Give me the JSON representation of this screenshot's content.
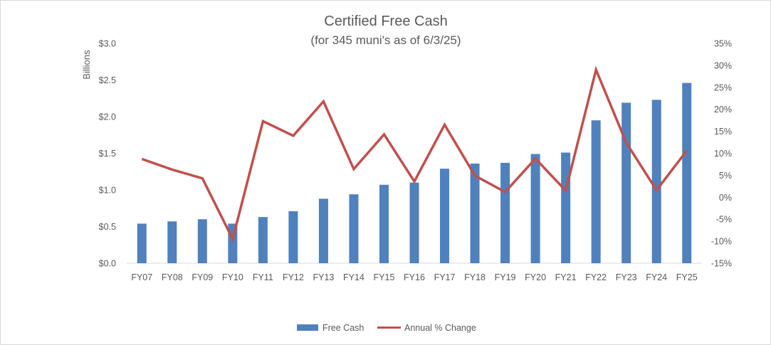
{
  "chart_data": {
    "type": "bar",
    "title": "Certified Free Cash",
    "subtitle": "(for 345 muni's as of 6/3/25)",
    "ylabel": "Billions",
    "categories": [
      "FY07",
      "FY08",
      "FY09",
      "FY10",
      "FY11",
      "FY12",
      "FY13",
      "FY14",
      "FY15",
      "FY16",
      "FY17",
      "FY18",
      "FY19",
      "FY20",
      "FY21",
      "FY22",
      "FY23",
      "FY24",
      "FY25"
    ],
    "series": [
      {
        "name": "Free Cash",
        "type": "bar",
        "axis": "left",
        "color": "#4f81bd",
        "values": [
          0.54,
          0.57,
          0.6,
          0.54,
          0.63,
          0.71,
          0.88,
          0.94,
          1.07,
          1.1,
          1.29,
          1.36,
          1.37,
          1.49,
          1.51,
          1.95,
          2.19,
          2.23,
          2.46
        ]
      },
      {
        "name": "Annual % Change",
        "type": "line",
        "axis": "right",
        "color": "#c0504d",
        "values": [
          8.7,
          6.3,
          4.3,
          -9.5,
          17.3,
          14.0,
          21.8,
          6.4,
          14.3,
          3.6,
          16.5,
          4.9,
          1.2,
          8.8,
          1.5,
          29.0,
          12.4,
          1.6,
          10.6
        ]
      }
    ],
    "y_left": {
      "min": 0,
      "max": 3.0,
      "ticks": [
        0,
        0.5,
        1.0,
        1.5,
        2.0,
        2.5,
        3.0
      ],
      "tick_labels": [
        "$0.0",
        "$0.5",
        "$1.0",
        "$1.5",
        "$2.0",
        "$2.5",
        "$3.0"
      ]
    },
    "y_right": {
      "min": -15,
      "max": 35,
      "ticks": [
        -15,
        -10,
        -5,
        0,
        5,
        10,
        15,
        20,
        25,
        30,
        35
      ],
      "tick_labels": [
        "-15%",
        "-10%",
        "-5%",
        "0%",
        "5%",
        "10%",
        "15%",
        "20%",
        "25%",
        "30%",
        "35%"
      ]
    },
    "grid": false,
    "legend": {
      "position": "bottom",
      "items": [
        "Free Cash",
        "Annual % Change"
      ]
    }
  }
}
